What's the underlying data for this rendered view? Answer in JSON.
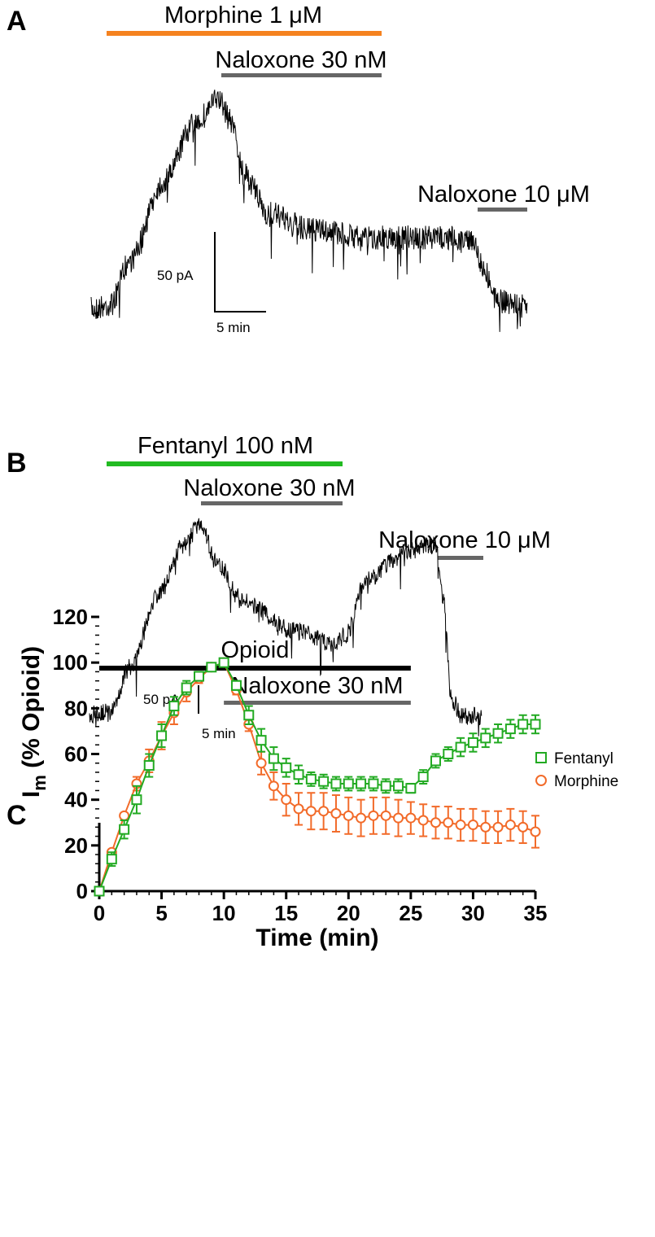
{
  "panel_a": {
    "letter": "A",
    "bars": [
      {
        "label": "Morphine 1 μM",
        "color": "#f5821f"
      },
      {
        "label": "Naloxone 30 nM",
        "color": "#666666"
      },
      {
        "label": "Naloxone 10 μM",
        "color": "#666666"
      }
    ],
    "scale_current": "50 pA",
    "scale_time": "5 min"
  },
  "panel_b": {
    "letter": "B",
    "bars": [
      {
        "label": "Fentanyl 100 nM",
        "color": "#22bb22"
      },
      {
        "label": "Naloxone 30 nM",
        "color": "#666666"
      },
      {
        "label": "Naloxone 10 μM",
        "color": "#666666"
      }
    ],
    "scale_current": "50 pA",
    "scale_time": "5 min"
  },
  "chart_data": {
    "type": "line",
    "panel_letter": "C",
    "xlabel": "Time (min)",
    "ylabel_main": "I",
    "ylabel_sub": "m",
    "ylabel_rest": " (% Opioid)",
    "xlim": [
      0,
      35
    ],
    "ylim": [
      0,
      120
    ],
    "xticks": [
      0,
      5,
      10,
      15,
      20,
      25,
      30,
      35
    ],
    "yticks": [
      0,
      20,
      40,
      60,
      80,
      100,
      120
    ],
    "bars": [
      {
        "label": "Opioid",
        "start": 0,
        "end": 25,
        "color": "#000000"
      },
      {
        "label": "Naloxone 30 nM",
        "start": 10,
        "end": 25,
        "color": "#666666"
      }
    ],
    "x": [
      0,
      1,
      2,
      3,
      4,
      5,
      6,
      7,
      8,
      9,
      10,
      11,
      12,
      13,
      14,
      15,
      16,
      17,
      18,
      19,
      20,
      21,
      22,
      23,
      24,
      25,
      26,
      27,
      28,
      29,
      30,
      31,
      32,
      33,
      34,
      35
    ],
    "series": [
      {
        "name": "Fentanyl",
        "color": "#22aa22",
        "marker": "square",
        "values": [
          0,
          14,
          27,
          40,
          55,
          68,
          81,
          89,
          94,
          98,
          100,
          90,
          77,
          66,
          58,
          54,
          51,
          49,
          48,
          47,
          47,
          47,
          47,
          46,
          46,
          45,
          50,
          57,
          60,
          63,
          65,
          67,
          69,
          71,
          73,
          73
        ],
        "errors": [
          0,
          3,
          4,
          6,
          5,
          5,
          4,
          3,
          2,
          1,
          0,
          2,
          4,
          5,
          5,
          4,
          4,
          3,
          3,
          3,
          3,
          3,
          3,
          3,
          3,
          2,
          3,
          3,
          3,
          4,
          4,
          4,
          4,
          4,
          4,
          4
        ]
      },
      {
        "name": "Morphine",
        "color": "#f26b2a",
        "marker": "circle",
        "values": [
          0,
          17,
          33,
          47,
          57,
          68,
          78,
          87,
          93,
          98,
          100,
          88,
          73,
          56,
          46,
          40,
          36,
          35,
          35,
          34,
          33,
          32,
          33,
          33,
          32,
          32,
          31,
          30,
          30,
          29,
          29,
          28,
          28,
          29,
          28,
          26
        ],
        "errors": [
          0,
          1,
          1,
          3,
          5,
          6,
          5,
          4,
          2,
          1,
          0,
          2,
          3,
          5,
          6,
          7,
          7,
          8,
          8,
          8,
          8,
          8,
          8,
          8,
          8,
          7,
          7,
          7,
          7,
          7,
          7,
          7,
          7,
          7,
          7,
          7
        ]
      }
    ],
    "legend_position": "right"
  }
}
